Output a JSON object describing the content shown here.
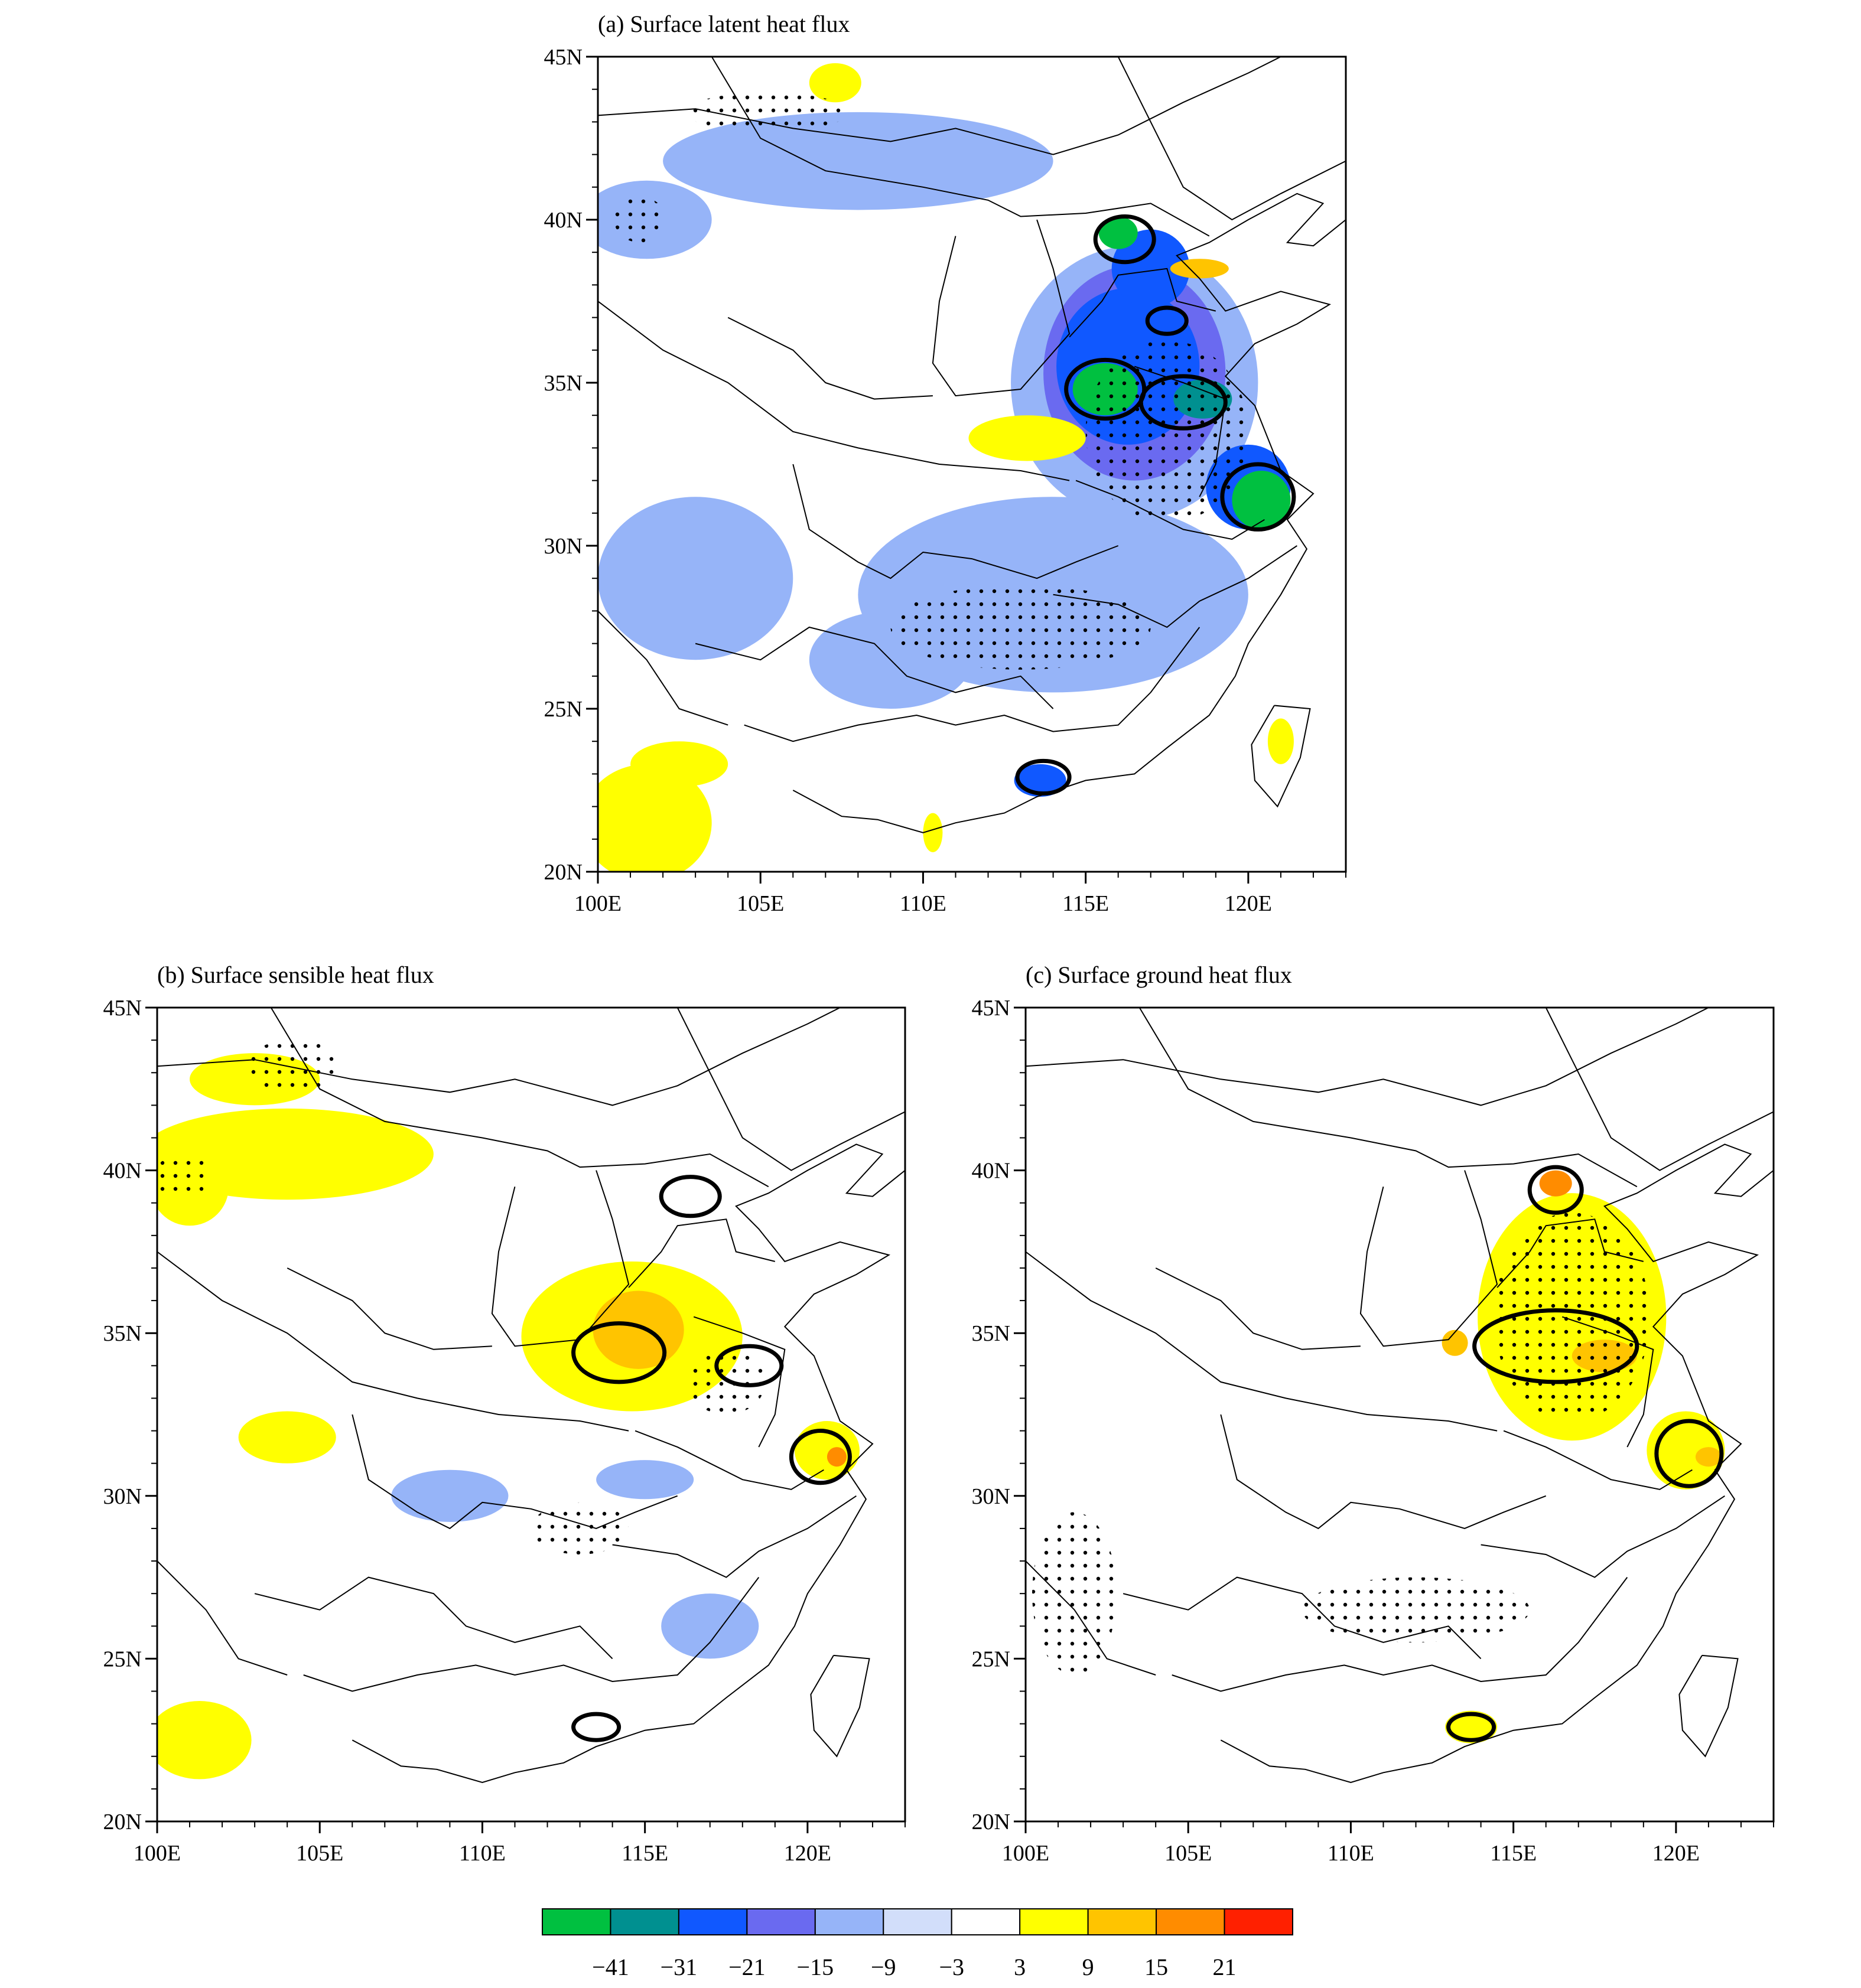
{
  "panels": [
    {
      "id": "a",
      "title": "(a) Surface latent heat flux",
      "lat_labels": [
        "45N",
        "40N",
        "35N",
        "30N",
        "25N",
        "20N"
      ],
      "lon_labels": [
        "100E",
        "105E",
        "110E",
        "115E",
        "120E"
      ],
      "fill": [
        {
          "lon": 116.5,
          "lat": 35.0,
          "rx": 3.8,
          "ry": 4.2,
          "level": "-9"
        },
        {
          "lon": 108.0,
          "lat": 41.8,
          "rx": 6.0,
          "ry": 1.5,
          "level": "-9"
        },
        {
          "lon": 101.5,
          "lat": 40.0,
          "rx": 2.0,
          "ry": 1.2,
          "level": "-9"
        },
        {
          "lon": 114.0,
          "lat": 28.5,
          "rx": 6.0,
          "ry": 3.0,
          "level": "-9"
        },
        {
          "lon": 103.0,
          "lat": 29.0,
          "rx": 3.0,
          "ry": 2.5,
          "level": "-9"
        },
        {
          "lon": 109.0,
          "lat": 26.5,
          "rx": 2.5,
          "ry": 1.5,
          "level": "-9"
        },
        {
          "lon": 116.5,
          "lat": 35.3,
          "rx": 2.8,
          "ry": 3.3,
          "level": "-15"
        },
        {
          "lon": 116.3,
          "lat": 35.5,
          "rx": 2.2,
          "ry": 2.4,
          "level": "-21"
        },
        {
          "lon": 117.0,
          "lat": 38.5,
          "rx": 1.2,
          "ry": 1.2,
          "level": "-21"
        },
        {
          "lon": 120.0,
          "lat": 31.8,
          "rx": 1.3,
          "ry": 1.3,
          "level": "-21"
        },
        {
          "lon": 116.0,
          "lat": 39.6,
          "rx": 0.6,
          "ry": 0.5,
          "level": "-41"
        },
        {
          "lon": 115.6,
          "lat": 34.8,
          "rx": 1.0,
          "ry": 0.8,
          "level": "-41"
        },
        {
          "lon": 118.6,
          "lat": 34.5,
          "rx": 0.9,
          "ry": 0.6,
          "level": "-31"
        },
        {
          "lon": 120.4,
          "lat": 31.4,
          "rx": 0.9,
          "ry": 0.9,
          "level": "-41"
        },
        {
          "lon": 113.6,
          "lat": 22.8,
          "rx": 0.8,
          "ry": 0.5,
          "level": "-21"
        },
        {
          "lon": 101.5,
          "lat": 21.5,
          "rx": 2.0,
          "ry": 1.8,
          "level": "3"
        },
        {
          "lon": 102.5,
          "lat": 23.3,
          "rx": 1.5,
          "ry": 0.7,
          "level": "3"
        },
        {
          "lon": 113.2,
          "lat": 33.3,
          "rx": 1.8,
          "ry": 0.7,
          "level": "3"
        },
        {
          "lon": 107.3,
          "lat": 44.2,
          "rx": 0.8,
          "ry": 0.6,
          "level": "3"
        },
        {
          "lon": 121.0,
          "lat": 24.0,
          "rx": 0.4,
          "ry": 0.7,
          "level": "3"
        },
        {
          "lon": 110.3,
          "lat": 21.2,
          "rx": 0.3,
          "ry": 0.6,
          "level": "3"
        },
        {
          "lon": 118.5,
          "lat": 38.5,
          "rx": 0.9,
          "ry": 0.3,
          "level": "9"
        }
      ],
      "contours": [
        {
          "lon": 116.2,
          "lat": 39.4,
          "rx": 0.9,
          "ry": 0.7
        },
        {
          "lon": 115.6,
          "lat": 34.8,
          "rx": 1.2,
          "ry": 0.9
        },
        {
          "lon": 118.0,
          "lat": 34.4,
          "rx": 1.3,
          "ry": 0.8
        },
        {
          "lon": 120.3,
          "lat": 31.5,
          "rx": 1.1,
          "ry": 1.0
        },
        {
          "lon": 117.5,
          "lat": 36.9,
          "rx": 0.6,
          "ry": 0.4
        },
        {
          "lon": 113.7,
          "lat": 22.9,
          "rx": 0.8,
          "ry": 0.5
        }
      ],
      "stipple": [
        {
          "lon": 117.5,
          "lat": 33.5,
          "rx": 2.5,
          "ry": 2.8
        },
        {
          "lon": 113.0,
          "lat": 27.5,
          "rx": 4.0,
          "ry": 1.3
        },
        {
          "lon": 105.2,
          "lat": 43.3,
          "rx": 2.5,
          "ry": 0.6
        },
        {
          "lon": 101.3,
          "lat": 40.0,
          "rx": 0.8,
          "ry": 0.7
        }
      ]
    },
    {
      "id": "b",
      "title": "(b) Surface sensible heat flux",
      "lat_labels": [
        "45N",
        "40N",
        "35N",
        "30N",
        "25N",
        "20N"
      ],
      "lon_labels": [
        "100E",
        "105E",
        "110E",
        "115E",
        "120E"
      ],
      "fill": [
        {
          "lon": 114.6,
          "lat": 34.9,
          "rx": 3.4,
          "ry": 2.3,
          "level": "3"
        },
        {
          "lon": 104.0,
          "lat": 40.5,
          "rx": 4.5,
          "ry": 1.4,
          "level": "3"
        },
        {
          "lon": 103.0,
          "lat": 42.8,
          "rx": 2.0,
          "ry": 0.8,
          "level": "3"
        },
        {
          "lon": 101.0,
          "lat": 39.5,
          "rx": 1.2,
          "ry": 1.2,
          "level": "3"
        },
        {
          "lon": 104.0,
          "lat": 31.8,
          "rx": 1.5,
          "ry": 0.8,
          "level": "3"
        },
        {
          "lon": 101.3,
          "lat": 22.5,
          "rx": 1.6,
          "ry": 1.2,
          "level": "3"
        },
        {
          "lon": 120.6,
          "lat": 31.4,
          "rx": 1.0,
          "ry": 0.9,
          "level": "3"
        },
        {
          "lon": 114.8,
          "lat": 35.1,
          "rx": 1.4,
          "ry": 1.2,
          "level": "9"
        },
        {
          "lon": 120.9,
          "lat": 31.2,
          "rx": 0.3,
          "ry": 0.3,
          "level": "15"
        },
        {
          "lon": 109.0,
          "lat": 30.0,
          "rx": 1.8,
          "ry": 0.8,
          "level": "-9"
        },
        {
          "lon": 117.0,
          "lat": 26.0,
          "rx": 1.5,
          "ry": 1.0,
          "level": "-9"
        },
        {
          "lon": 115.0,
          "lat": 30.5,
          "rx": 1.5,
          "ry": 0.6,
          "level": "-9"
        }
      ],
      "contours": [
        {
          "lon": 114.2,
          "lat": 34.4,
          "rx": 1.4,
          "ry": 0.9
        },
        {
          "lon": 116.4,
          "lat": 39.2,
          "rx": 0.9,
          "ry": 0.6
        },
        {
          "lon": 118.2,
          "lat": 34.0,
          "rx": 1.0,
          "ry": 0.6
        },
        {
          "lon": 120.4,
          "lat": 31.2,
          "rx": 0.9,
          "ry": 0.8
        },
        {
          "lon": 113.5,
          "lat": 22.9,
          "rx": 0.7,
          "ry": 0.4
        }
      ],
      "stipple": [
        {
          "lon": 104.2,
          "lat": 43.2,
          "rx": 1.5,
          "ry": 0.8
        },
        {
          "lon": 100.8,
          "lat": 39.8,
          "rx": 0.9,
          "ry": 0.7
        },
        {
          "lon": 117.5,
          "lat": 33.5,
          "rx": 1.2,
          "ry": 1.0
        },
        {
          "lon": 113.0,
          "lat": 29.0,
          "rx": 1.5,
          "ry": 0.8
        }
      ]
    },
    {
      "id": "c",
      "title": "(c) Surface ground heat flux",
      "lat_labels": [
        "45N",
        "40N",
        "35N",
        "30N",
        "25N",
        "20N"
      ],
      "lon_labels": [
        "100E",
        "105E",
        "110E",
        "115E",
        "120E"
      ],
      "fill": [
        {
          "lon": 116.8,
          "lat": 35.5,
          "rx": 2.9,
          "ry": 3.8,
          "level": "3"
        },
        {
          "lon": 120.3,
          "lat": 31.4,
          "rx": 1.2,
          "ry": 1.2,
          "level": "3"
        },
        {
          "lon": 113.7,
          "lat": 22.9,
          "rx": 0.8,
          "ry": 0.5,
          "level": "3"
        },
        {
          "lon": 116.3,
          "lat": 39.6,
          "rx": 0.5,
          "ry": 0.4,
          "level": "15"
        },
        {
          "lon": 117.8,
          "lat": 34.3,
          "rx": 1.0,
          "ry": 0.5,
          "level": "9"
        },
        {
          "lon": 121.0,
          "lat": 31.2,
          "rx": 0.4,
          "ry": 0.3,
          "level": "9"
        },
        {
          "lon": 113.2,
          "lat": 34.7,
          "rx": 0.4,
          "ry": 0.4,
          "level": "9"
        }
      ],
      "contours": [
        {
          "lon": 116.3,
          "lat": 39.4,
          "rx": 0.8,
          "ry": 0.7
        },
        {
          "lon": 116.3,
          "lat": 34.6,
          "rx": 2.5,
          "ry": 1.1
        },
        {
          "lon": 120.4,
          "lat": 31.3,
          "rx": 1.0,
          "ry": 1.0
        },
        {
          "lon": 113.7,
          "lat": 22.9,
          "rx": 0.7,
          "ry": 0.4
        }
      ],
      "stipple": [
        {
          "lon": 116.8,
          "lat": 35.5,
          "rx": 2.4,
          "ry": 3.2
        },
        {
          "lon": 112.0,
          "lat": 26.5,
          "rx": 3.5,
          "ry": 1.0
        },
        {
          "lon": 101.5,
          "lat": 27.0,
          "rx": 1.3,
          "ry": 2.5
        }
      ]
    }
  ],
  "colorbar": {
    "colors": [
      "#00c040",
      "#009090",
      "#1058ff",
      "#6a6af0",
      "#96b4f8",
      "#d2defa",
      "#ffffff",
      "#ffff00",
      "#ffc400",
      "#ff8c00",
      "#ff2000"
    ],
    "labels": [
      "−41",
      "−31",
      "−21",
      "−15",
      "−9",
      "−3",
      "3",
      "9",
      "15",
      "21"
    ]
  },
  "level_colors": {
    "-41": "#00c040",
    "-31": "#009090",
    "-21": "#1058ff",
    "-15": "#6a6af0",
    "-9": "#96b4f8",
    "-3": "#d2defa",
    "3": "#ffff00",
    "9": "#ffc400",
    "15": "#ff8c00",
    "21": "#ff2000"
  }
}
